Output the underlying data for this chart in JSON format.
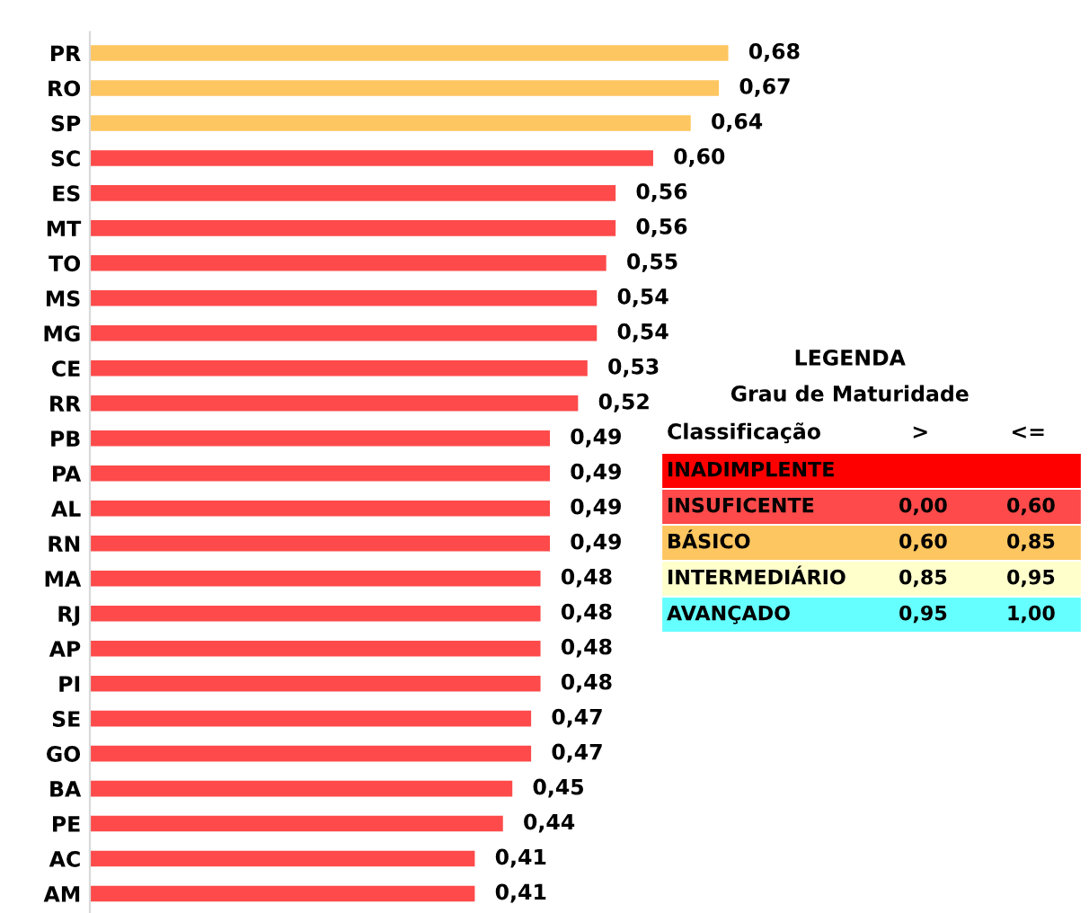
{
  "chart_data": {
    "type": "bar",
    "orientation": "horizontal",
    "categories": [
      "PR",
      "RO",
      "SP",
      "SC",
      "ES",
      "MT",
      "TO",
      "MS",
      "MG",
      "CE",
      "RR",
      "PB",
      "PA",
      "AL",
      "RN",
      "MA",
      "RJ",
      "AP",
      "PI",
      "SE",
      "GO",
      "BA",
      "PE",
      "AC",
      "AM"
    ],
    "values": [
      0.68,
      0.67,
      0.64,
      0.6,
      0.56,
      0.56,
      0.55,
      0.54,
      0.54,
      0.53,
      0.52,
      0.49,
      0.49,
      0.49,
      0.49,
      0.48,
      0.48,
      0.48,
      0.48,
      0.47,
      0.47,
      0.45,
      0.44,
      0.41,
      0.41
    ],
    "value_labels": [
      "0,68",
      "0,67",
      "0,64",
      "0,60",
      "0,56",
      "0,56",
      "0,55",
      "0,54",
      "0,54",
      "0,53",
      "0,52",
      "0,49",
      "0,49",
      "0,49",
      "0,49",
      "0,48",
      "0,48",
      "0,48",
      "0,48",
      "0,47",
      "0,47",
      "0,45",
      "0,44",
      "0,41",
      "0,41"
    ],
    "colors": [
      "#fec660",
      "#fec660",
      "#fec660",
      "#fe4a4a",
      "#fe4a4a",
      "#fe4a4a",
      "#fe4a4a",
      "#fe4a4a",
      "#fe4a4a",
      "#fe4a4a",
      "#fe4a4a",
      "#fe4a4a",
      "#fe4a4a",
      "#fe4a4a",
      "#fe4a4a",
      "#fe4a4a",
      "#fe4a4a",
      "#fe4a4a",
      "#fe4a4a",
      "#fe4a4a",
      "#fe4a4a",
      "#fe4a4a",
      "#fe4a4a",
      "#fe4a4a",
      "#fe4a4a"
    ],
    "annotations": [
      "LEGENDA",
      "Grau de Maturidade",
      "Classificação",
      ">",
      "<=",
      "INADIMPLENTE",
      "INSUFICENTE",
      "0,00",
      "0,60",
      "BÁSICO",
      "0,60",
      "0,85",
      "INTERMEDIÁRIO",
      "0,85",
      "0,95",
      "AVANÇADO",
      "0,95",
      "1,00"
    ],
    "grid": false,
    "legend": false
  }
}
